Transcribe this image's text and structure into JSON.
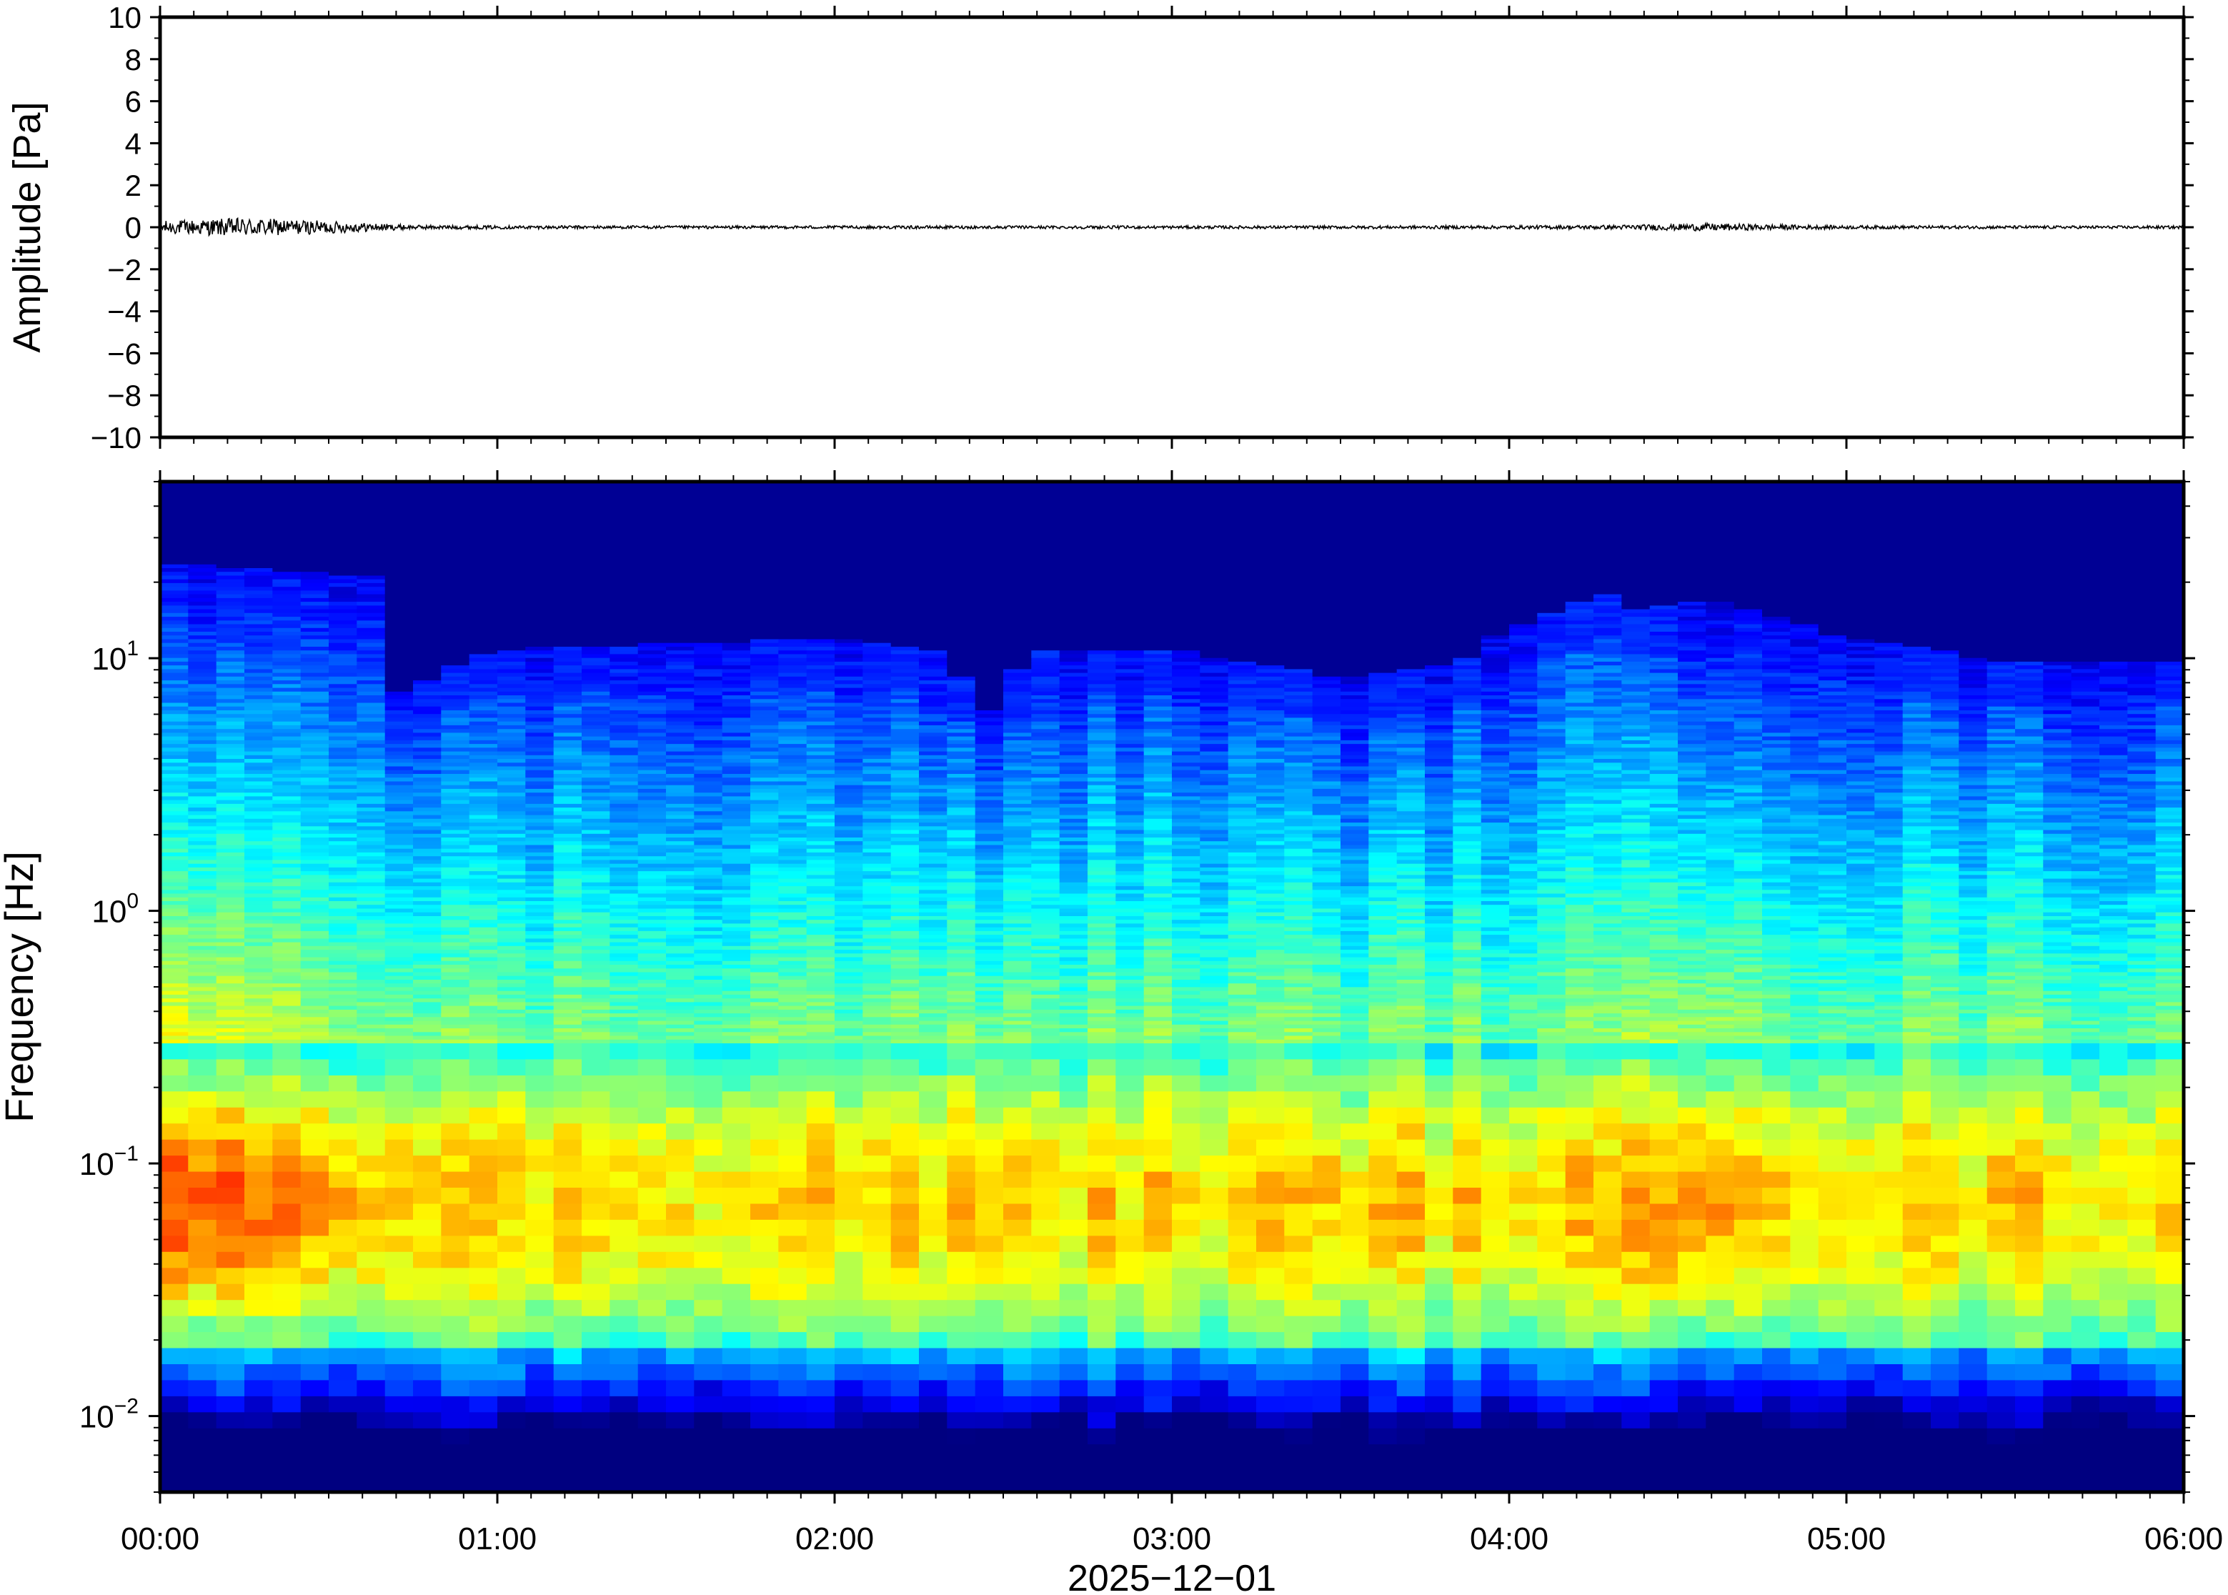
{
  "chart_data": [
    {
      "type": "line",
      "title": "",
      "xlabel": "",
      "ylabel": "Amplitude [Pa]",
      "ylim": [
        -10,
        10
      ],
      "ytick_values": [
        10,
        8,
        6,
        4,
        2,
        0,
        -2,
        -4,
        -6,
        -8,
        -10
      ],
      "ytick_labels": [
        "10",
        "8",
        "6",
        "4",
        "2",
        "0",
        "−2",
        "−4",
        "−6",
        "−8",
        "−10"
      ],
      "xlim_hours": [
        0,
        6
      ],
      "series": [
        {
          "x_hours": [
            0.0,
            0.25,
            0.5,
            0.62,
            0.75,
            1.0,
            1.5,
            2.0,
            2.5,
            3.0,
            3.5,
            4.0,
            4.3,
            4.6,
            4.8,
            5.0,
            5.5,
            6.0
          ],
          "envelope_pa": [
            0.3,
            0.45,
            0.3,
            0.2,
            0.1,
            0.08,
            0.07,
            0.07,
            0.07,
            0.07,
            0.07,
            0.08,
            0.1,
            0.18,
            0.12,
            0.08,
            0.07,
            0.07
          ]
        }
      ],
      "grid": false
    },
    {
      "type": "heatmap",
      "title": "",
      "xlabel": "2025−12−01",
      "ylabel": "Frequency [Hz]",
      "yscale": "log",
      "ylim_hz": [
        0.005,
        50
      ],
      "ytick_values": [
        10,
        1,
        0.1,
        0.01
      ],
      "ytick_labels": [
        {
          "base": "10",
          "exp": "1"
        },
        {
          "base": "10",
          "exp": "0"
        },
        {
          "base": "10",
          "exp": "−1"
        },
        {
          "base": "10",
          "exp": "−2"
        }
      ],
      "xtick_labels": [
        "00:00",
        "01:00",
        "02:00",
        "03:00",
        "04:00",
        "05:00",
        "06:00"
      ],
      "xlim_hours": [
        0,
        6
      ],
      "colormap": "jet (dark navy = low power, red/orange = high power)",
      "grid": false,
      "upper_edge_hz_at_hour": {
        "hours": [
          0.0,
          0.5,
          0.65,
          0.7,
          1.0,
          2.0,
          2.3,
          2.45,
          2.6,
          3.0,
          3.5,
          3.85,
          4.0,
          4.3,
          4.35,
          4.6,
          5.0,
          5.5,
          6.0
        ],
        "hz": [
          20,
          18,
          18,
          6,
          9,
          10,
          9,
          5,
          9,
          9,
          7,
          8,
          11,
          15,
          13,
          14,
          10,
          8,
          8
        ]
      },
      "peak_energy_band_hz": [
        0.03,
        0.2
      ],
      "peak_energy_hours": [
        0.0,
        0.6,
        4.3,
        4.9
      ]
    }
  ]
}
